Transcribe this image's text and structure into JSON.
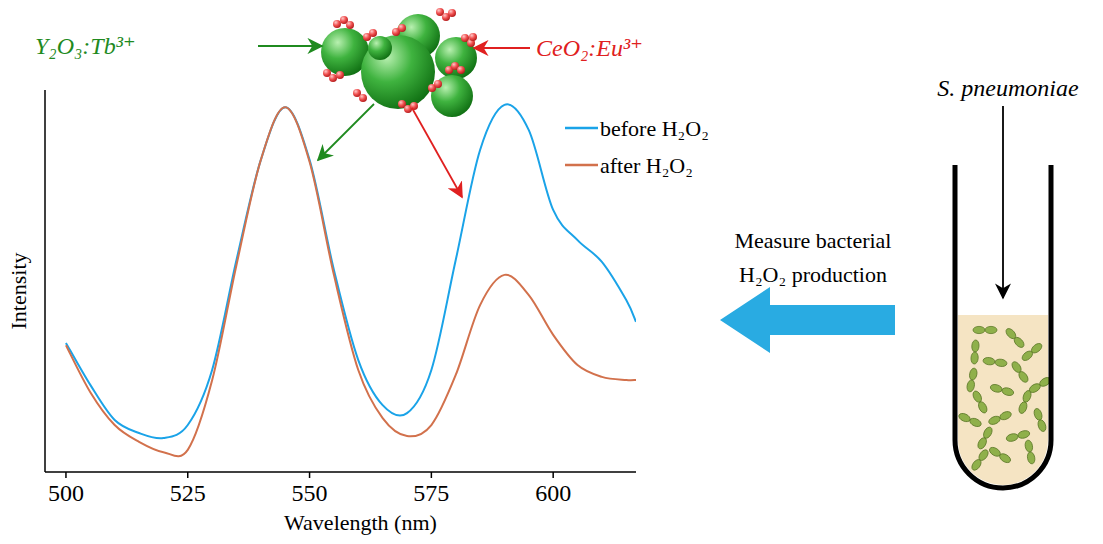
{
  "chart_data": {
    "type": "line",
    "x_label": "Wavelength (nm)",
    "y_label": "Intensity",
    "x": [
      500,
      505,
      510,
      515,
      520,
      525,
      530,
      535,
      540,
      545,
      550,
      555,
      560,
      565,
      570,
      575,
      580,
      585,
      590,
      595,
      600,
      605,
      610,
      615,
      617
    ],
    "series": [
      {
        "name": "before H₂O₂",
        "color": "#1aa3e8",
        "values": [
          33.8,
          22.8,
          13.6,
          10.2,
          8.9,
          12.3,
          26.7,
          55.5,
          81.7,
          95.5,
          81.7,
          52.9,
          29.3,
          17.5,
          15.4,
          26.7,
          55.5,
          84.3,
          96.1,
          89.5,
          68.6,
          60.7,
          55.0,
          45.0,
          39.3
        ]
      },
      {
        "name": "after H₂O₂",
        "color": "#d2714c",
        "values": [
          33.2,
          20.9,
          12.3,
          7.9,
          5.2,
          5.8,
          24.0,
          54.2,
          81.7,
          95.5,
          81.2,
          51.6,
          26.7,
          14.1,
          9.4,
          12.3,
          25.4,
          43.7,
          51.6,
          46.3,
          35.9,
          28.0,
          24.9,
          24.1,
          24.1
        ]
      }
    ],
    "xlim": [
      495.7,
      617
    ],
    "xticks": [
      500,
      525,
      550,
      575,
      600
    ],
    "ylim": [
      0,
      100
    ],
    "tick_labels": "x",
    "grid": false,
    "legend": "top-right",
    "annotations": [
      "Y₂O₃:Tb³⁺",
      "CeO₂:Eu³⁺",
      "S. pneumoniae",
      "Measure bacterial H₂O₂ production"
    ]
  }
}
